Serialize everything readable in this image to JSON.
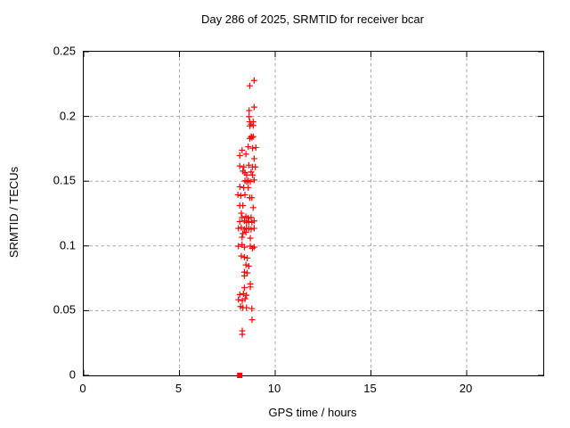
{
  "page": {
    "background": "#ffffff"
  },
  "chart_data": {
    "type": "scatter",
    "title": "Day 286 of 2025, SRMTID for receiver bcar",
    "xlabel": "GPS time / hours",
    "ylabel": "SRMTID / TECUs",
    "xlim": [
      0,
      24
    ],
    "ylim": [
      0,
      0.25
    ],
    "xticks": [
      0,
      5,
      10,
      15,
      20
    ],
    "xtick_labels": [
      "0",
      "5",
      "10",
      "15",
      "20"
    ],
    "yticks": [
      0,
      0.05,
      0.1,
      0.15,
      0.2,
      0.25
    ],
    "ytick_labels": [
      "0",
      "0.05",
      "0.1",
      "0.15",
      "0.2",
      "0.25"
    ],
    "grid": {
      "show": true,
      "x_values": [
        5,
        10,
        15,
        20
      ],
      "y_values": [
        0.05,
        0.1,
        0.15,
        0.2
      ],
      "color": "#a8a8a8",
      "style": "dashed"
    },
    "legend": "none",
    "axis_color": "#000000",
    "text_color": "#000000",
    "marker_color": "#ff0000",
    "series": [
      {
        "name": "SRMTID values",
        "marker": "plus",
        "color": "#ff0000",
        "points": [
          [
            8.9,
            0.2278
          ],
          [
            8.67,
            0.2237
          ],
          [
            8.9,
            0.2072
          ],
          [
            8.64,
            0.2046
          ],
          [
            8.64,
            0.1998
          ],
          [
            8.67,
            0.1959
          ],
          [
            8.85,
            0.1959
          ],
          [
            8.74,
            0.1941
          ],
          [
            8.85,
            0.193
          ],
          [
            8.67,
            0.1927
          ],
          [
            8.74,
            0.1844
          ],
          [
            8.85,
            0.1844
          ],
          [
            8.78,
            0.1838
          ],
          [
            8.67,
            0.183
          ],
          [
            8.59,
            0.1766
          ],
          [
            8.99,
            0.176
          ],
          [
            8.82,
            0.1755
          ],
          [
            8.27,
            0.1739
          ],
          [
            8.47,
            0.1709
          ],
          [
            8.15,
            0.1698
          ],
          [
            8.9,
            0.1674
          ],
          [
            8.62,
            0.1624
          ],
          [
            8.15,
            0.1617
          ],
          [
            8.36,
            0.161
          ],
          [
            8.82,
            0.161
          ],
          [
            8.96,
            0.161
          ],
          [
            8.31,
            0.1578
          ],
          [
            8.74,
            0.1571
          ],
          [
            8.42,
            0.1565
          ],
          [
            8.51,
            0.1548
          ],
          [
            8.82,
            0.1548
          ],
          [
            8.9,
            0.1509
          ],
          [
            8.42,
            0.1503
          ],
          [
            8.59,
            0.1503
          ],
          [
            8.51,
            0.1496
          ],
          [
            8.7,
            0.1496
          ],
          [
            8.15,
            0.1457
          ],
          [
            8.36,
            0.145
          ],
          [
            8.59,
            0.145
          ],
          [
            8.05,
            0.1395
          ],
          [
            8.42,
            0.1395
          ],
          [
            8.2,
            0.1388
          ],
          [
            8.67,
            0.1372
          ],
          [
            8.78,
            0.1372
          ],
          [
            8.15,
            0.1312
          ],
          [
            8.31,
            0.1312
          ],
          [
            8.85,
            0.1296
          ],
          [
            8.23,
            0.1253
          ],
          [
            8.47,
            0.1227
          ],
          [
            8.27,
            0.122
          ],
          [
            8.74,
            0.122
          ],
          [
            8.59,
            0.1216
          ],
          [
            8.39,
            0.1193
          ],
          [
            8.9,
            0.1193
          ],
          [
            8.15,
            0.1188
          ],
          [
            8.62,
            0.1188
          ],
          [
            8.5,
            0.1182
          ],
          [
            8.78,
            0.1182
          ],
          [
            8.23,
            0.1142
          ],
          [
            8.08,
            0.1136
          ],
          [
            8.5,
            0.1136
          ],
          [
            8.62,
            0.1136
          ],
          [
            8.9,
            0.1136
          ],
          [
            8.39,
            0.1129
          ],
          [
            8.74,
            0.1129
          ],
          [
            8.47,
            0.1106
          ],
          [
            8.31,
            0.1096
          ],
          [
            8.27,
            0.1067
          ],
          [
            8.7,
            0.106
          ],
          [
            8.27,
            0.101
          ],
          [
            8.08,
            0.0998
          ],
          [
            8.7,
            0.0998
          ],
          [
            8.39,
            0.0991
          ],
          [
            8.9,
            0.0991
          ],
          [
            8.81,
            0.0982
          ],
          [
            8.23,
            0.0922
          ],
          [
            8.39,
            0.0913
          ],
          [
            8.54,
            0.0906
          ],
          [
            8.47,
            0.0853
          ],
          [
            8.62,
            0.0844
          ],
          [
            8.39,
            0.0798
          ],
          [
            8.54,
            0.0791
          ],
          [
            8.39,
            0.0769
          ],
          [
            8.7,
            0.0707
          ],
          [
            8.7,
            0.0683
          ],
          [
            8.39,
            0.0677
          ],
          [
            8.34,
            0.0631
          ],
          [
            8.15,
            0.0624
          ],
          [
            8.5,
            0.0619
          ],
          [
            8.43,
            0.0592
          ],
          [
            8.08,
            0.0585
          ],
          [
            8.28,
            0.0578
          ],
          [
            8.19,
            0.0532
          ],
          [
            8.31,
            0.0523
          ],
          [
            8.5,
            0.0523
          ],
          [
            8.78,
            0.0516
          ],
          [
            8.79,
            0.043
          ],
          [
            8.28,
            0.0344
          ],
          [
            8.28,
            0.0317
          ]
        ]
      },
      {
        "name": "zero baseline marker",
        "marker": "filled-square",
        "color": "#ff0000",
        "points": [
          [
            8.15,
            0
          ]
        ]
      }
    ]
  }
}
